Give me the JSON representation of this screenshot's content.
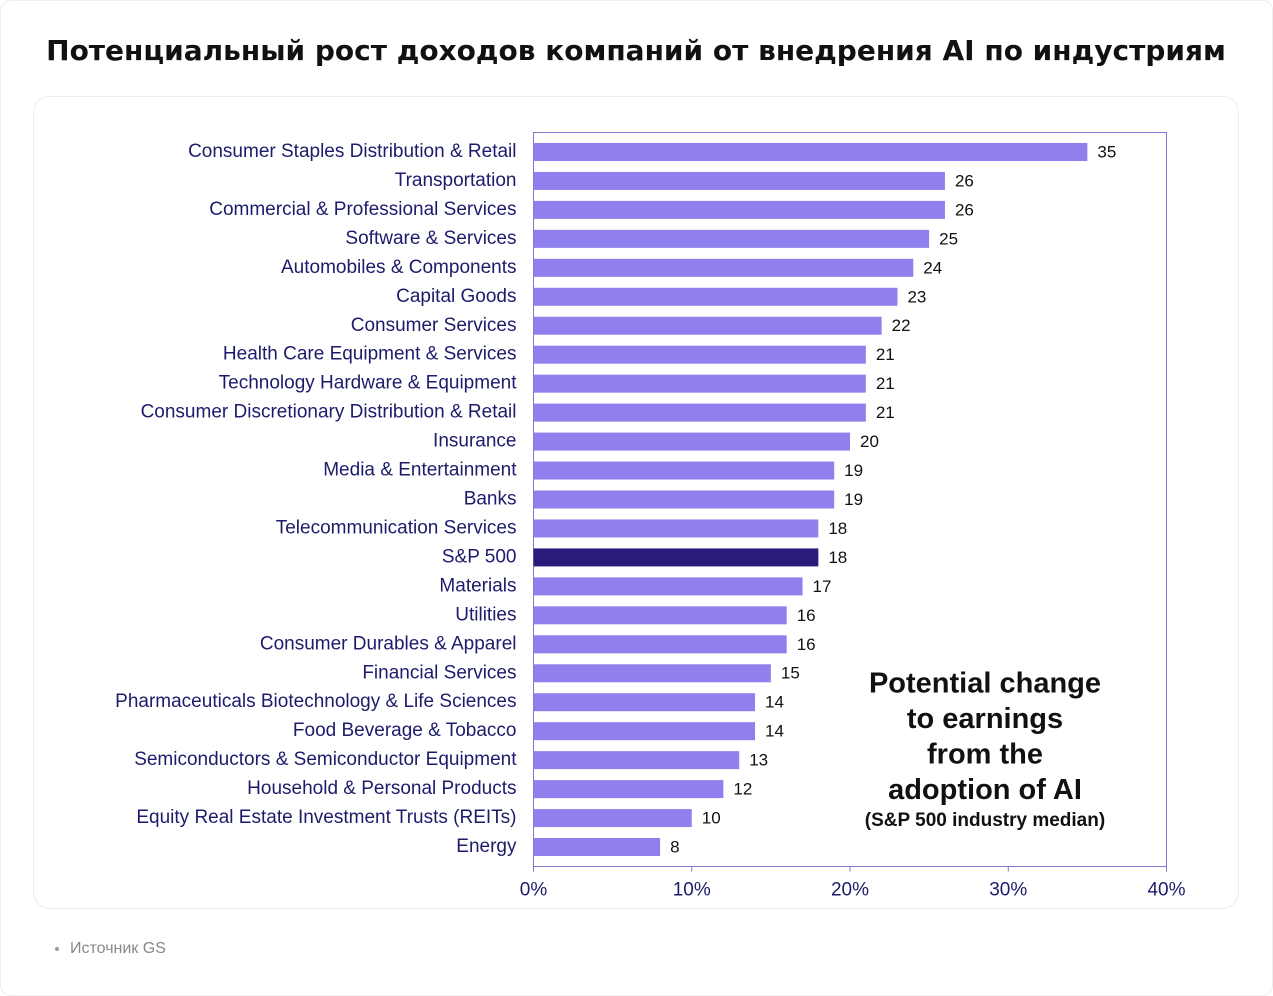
{
  "title": "Потенциальный рост доходов компаний от внедрения AI по индустриям",
  "source": "Источник GS",
  "chart_data": {
    "type": "barh",
    "categories": [
      "Consumer Staples Distribution & Retail",
      "Transportation",
      "Commercial & Professional Services",
      "Software & Services",
      "Automobiles & Components",
      "Capital Goods",
      "Consumer Services",
      "Health Care Equipment & Services",
      "Technology Hardware & Equipment",
      "Consumer Discretionary Distribution & Retail",
      "Insurance",
      "Media & Entertainment",
      "Banks",
      "Telecommunication Services",
      "S&P 500",
      "Materials",
      "Utilities",
      "Consumer Durables & Apparel",
      "Financial Services",
      "Pharmaceuticals Biotechnology & Life Sciences",
      "Food Beverage & Tobacco",
      "Semiconductors & Semiconductor Equipment",
      "Household & Personal Products",
      "Equity Real Estate Investment Trusts (REITs)",
      "Energy"
    ],
    "values": [
      35,
      26,
      26,
      25,
      24,
      23,
      22,
      21,
      21,
      21,
      20,
      19,
      19,
      18,
      18,
      17,
      16,
      16,
      15,
      14,
      14,
      13,
      12,
      10,
      8
    ],
    "colors": [
      "#8f80ee",
      "#8f80ee",
      "#8f80ee",
      "#8f80ee",
      "#8f80ee",
      "#8f80ee",
      "#8f80ee",
      "#8f80ee",
      "#8f80ee",
      "#8f80ee",
      "#8f80ee",
      "#8f80ee",
      "#8f80ee",
      "#8f80ee",
      "#2b1a7c",
      "#8f80ee",
      "#8f80ee",
      "#8f80ee",
      "#8f80ee",
      "#8f80ee",
      "#8f80ee",
      "#8f80ee",
      "#8f80ee",
      "#8f80ee",
      "#8f80ee"
    ],
    "xlim": [
      0,
      40
    ],
    "xticks": [
      {
        "value": 0,
        "label": "0%"
      },
      {
        "value": 10,
        "label": "10%"
      },
      {
        "value": 20,
        "label": "20%"
      },
      {
        "value": 30,
        "label": "30%"
      },
      {
        "value": 40,
        "label": "40%"
      }
    ],
    "annotation": [
      "Potential change",
      "to earnings",
      "from the",
      "adoption of AI"
    ],
    "annotation_note": "(S&P 500 industry median)"
  }
}
